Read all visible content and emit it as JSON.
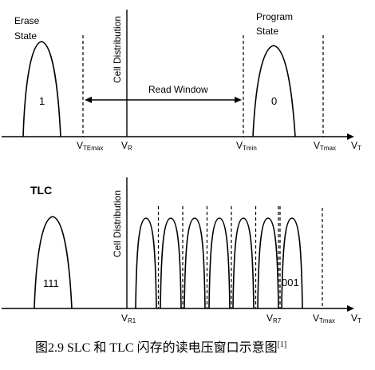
{
  "slc": {
    "erase_state": [
      "Erase",
      "State"
    ],
    "program_state": [
      "Program",
      "State"
    ],
    "erase_value": "1",
    "program_value": "0",
    "cell_distribution": "Cell Distribution",
    "read_window": "Read Window",
    "axis": {
      "vt_emax": {
        "main": "V",
        "sub": "TEmax"
      },
      "vr": {
        "main": "V",
        "sub": "R"
      },
      "vt_min": {
        "main": "V",
        "sub": "Tmin"
      },
      "vt_max": {
        "main": "V",
        "sub": "Tmax"
      },
      "vt": {
        "main": "V",
        "sub": "T"
      }
    }
  },
  "tlc": {
    "title": "TLC",
    "cell_distribution": "Cell Distribution",
    "first_value": "111",
    "last_value": "001",
    "axis": {
      "vr1": {
        "main": "V",
        "sub": "R1"
      },
      "vr7": {
        "main": "V",
        "sub": "R7"
      },
      "vt_max": {
        "main": "V",
        "sub": "Tmax"
      },
      "vt": {
        "main": "V",
        "sub": "T"
      }
    }
  },
  "caption": {
    "text": "图2.9  SLC 和 TLC 闪存的读电压窗口示意图",
    "ref": "[1]"
  }
}
